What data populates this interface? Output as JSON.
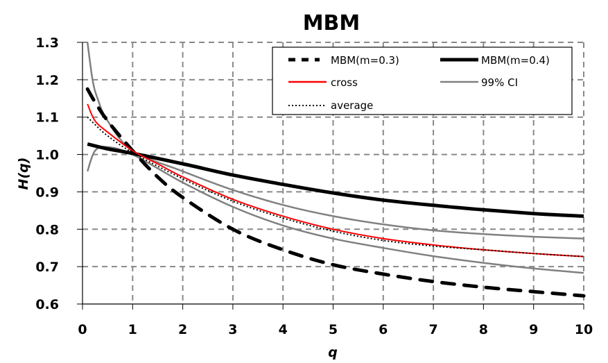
{
  "chart_data": {
    "type": "line",
    "title": "MBM",
    "xlabel": "q",
    "ylabel": "H(q)",
    "xlim": [
      0,
      10
    ],
    "ylim": [
      0.6,
      1.3
    ],
    "xticks": [
      "0",
      "1",
      "2",
      "3",
      "4",
      "5",
      "6",
      "7",
      "8",
      "9",
      "10"
    ],
    "yticks": [
      "0.6",
      "0.7",
      "0.8",
      "0.9",
      "1.0",
      "1.1",
      "1.2",
      "1.3"
    ],
    "grid": true,
    "legend_position": "top-right",
    "series": [
      {
        "name": "MBM(m=0.3)",
        "style": "dashed",
        "color": "#000000",
        "width": 5,
        "x": [
          0.1,
          0.25,
          0.5,
          1,
          1.5,
          2,
          3,
          4,
          5,
          6,
          7,
          8,
          9,
          10
        ],
        "y": [
          1.175,
          1.14,
          1.09,
          1.01,
          0.94,
          0.885,
          0.8,
          0.745,
          0.705,
          0.68,
          0.66,
          0.645,
          0.633,
          0.622
        ]
      },
      {
        "name": "MBM(m=0.4)",
        "style": "solid",
        "color": "#000000",
        "width": 5,
        "x": [
          0.1,
          0.5,
          1,
          2,
          3,
          4,
          5,
          6,
          7,
          8,
          9,
          10
        ],
        "y": [
          1.028,
          1.015,
          1.003,
          0.975,
          0.945,
          0.92,
          0.897,
          0.878,
          0.864,
          0.852,
          0.842,
          0.835
        ]
      },
      {
        "name": "cross",
        "style": "solid",
        "color": "#ff0000",
        "width": 2,
        "x": [
          0.1,
          0.25,
          0.5,
          1,
          1.5,
          2,
          3,
          4,
          5,
          6,
          7,
          8,
          9,
          10
        ],
        "y": [
          1.135,
          1.09,
          1.06,
          1.01,
          0.975,
          0.94,
          0.88,
          0.835,
          0.8,
          0.775,
          0.758,
          0.745,
          0.735,
          0.727
        ]
      },
      {
        "name": "99% CI",
        "style": "solid",
        "color": "#808080",
        "width": 2.5,
        "x": [
          0.1,
          0.2,
          0.3,
          0.5,
          1,
          2,
          3,
          4,
          5,
          6,
          7,
          8,
          9,
          10
        ],
        "y": [
          1.3,
          1.2,
          1.15,
          1.09,
          1.01,
          0.955,
          0.905,
          0.865,
          0.835,
          0.813,
          0.797,
          0.787,
          0.78,
          0.775
        ]
      },
      {
        "name": "99% CI (lower)",
        "style": "solid",
        "color": "#808080",
        "width": 2.5,
        "legend": false,
        "x": [
          0.1,
          0.25,
          0.5,
          1,
          2,
          3,
          4,
          5,
          6,
          7,
          8,
          9,
          10
        ],
        "y": [
          0.955,
          1.01,
          1.02,
          1.0,
          0.925,
          0.86,
          0.81,
          0.775,
          0.75,
          0.728,
          0.71,
          0.695,
          0.683
        ]
      },
      {
        "name": "average",
        "style": "dotted",
        "color": "#000000",
        "width": 2,
        "x": [
          0.1,
          0.25,
          0.5,
          1,
          2,
          3,
          4,
          5,
          6,
          7,
          8,
          9,
          10
        ],
        "y": [
          1.1,
          1.08,
          1.05,
          1.005,
          0.935,
          0.875,
          0.83,
          0.795,
          0.77,
          0.755,
          0.745,
          0.735,
          0.727
        ]
      }
    ]
  },
  "legend": {
    "items": [
      {
        "label": "MBM(m=0.3)"
      },
      {
        "label": "MBM(m=0.4)"
      },
      {
        "label": "cross"
      },
      {
        "label": "99% CI"
      },
      {
        "label": "average"
      }
    ]
  }
}
